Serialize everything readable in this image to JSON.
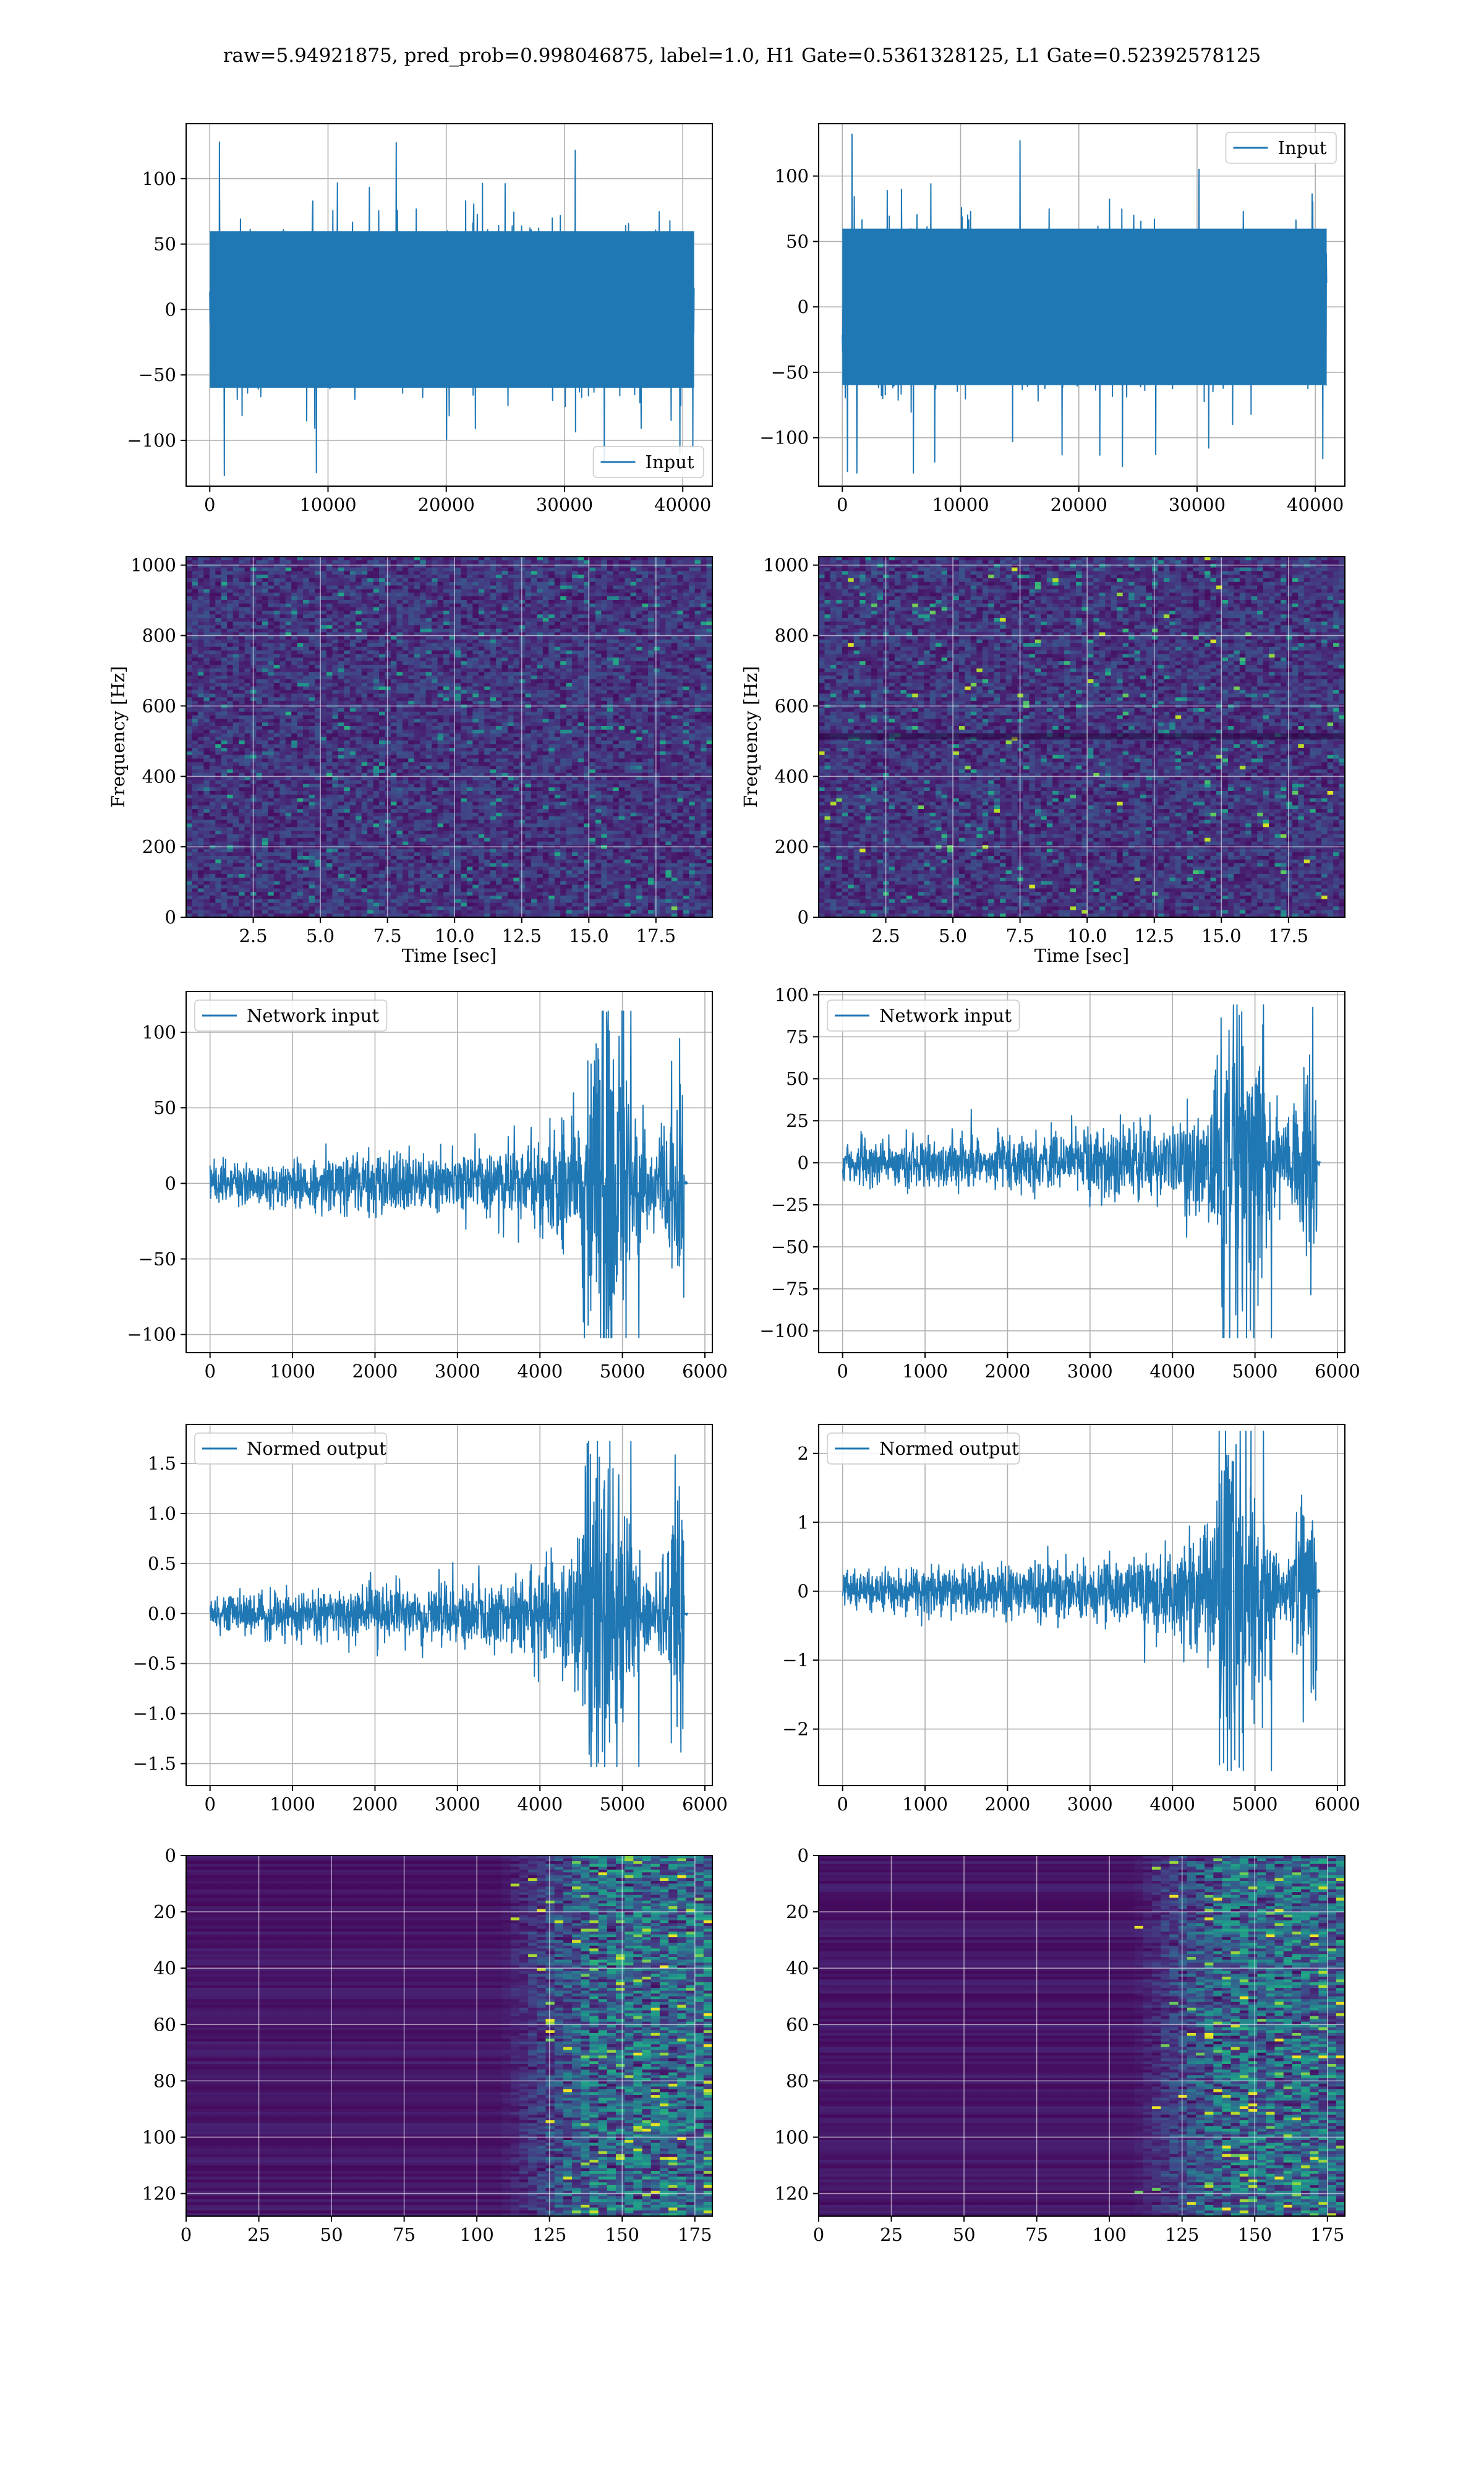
{
  "title": "raw=5.94921875, pred_prob=0.998046875, label=1.0, H1 Gate=0.5361328125, L1 Gate=0.52392578125",
  "colors": {
    "line": "#1f77b4",
    "grid": "#b0b0b0",
    "axes": "#000000",
    "viridis_low": "#440154",
    "viridis_mid": "#21918c",
    "viridis_high": "#fde725"
  },
  "chart_data": [
    {
      "id": "h1-raw-input",
      "type": "line",
      "title": "",
      "xlabel": "",
      "ylabel": "",
      "xlim": [
        -2000,
        42500
      ],
      "ylim": [
        -135,
        142
      ],
      "xticks": [
        0,
        10000,
        20000,
        30000,
        40000
      ],
      "yticks": [
        -100,
        -50,
        0,
        50,
        100
      ],
      "grid": true,
      "legend": "lower-right",
      "series": [
        {
          "name": "Input",
          "n_samples": 40960,
          "envelope_max": 128,
          "envelope_min": -127,
          "typical_band": [
            -65,
            65
          ]
        }
      ]
    },
    {
      "id": "l1-raw-input",
      "type": "line",
      "title": "",
      "xlabel": "",
      "ylabel": "",
      "xlim": [
        -2000,
        42500
      ],
      "ylim": [
        -137,
        140
      ],
      "xticks": [
        0,
        10000,
        20000,
        30000,
        40000
      ],
      "yticks": [
        -100,
        -50,
        0,
        50,
        100
      ],
      "grid": true,
      "legend": "upper-right",
      "series": [
        {
          "name": "Input",
          "n_samples": 40960,
          "envelope_max": 132,
          "envelope_min": -127,
          "typical_band": [
            -65,
            65
          ]
        }
      ]
    },
    {
      "id": "h1-spectrogram",
      "type": "heatmap",
      "title": "",
      "xlabel": "Time [sec]",
      "ylabel": "Frequency [Hz]",
      "xlim": [
        0,
        19.6
      ],
      "ylim": [
        0,
        1024
      ],
      "xticks": [
        2.5,
        5.0,
        7.5,
        10.0,
        12.5,
        15.0,
        17.5
      ],
      "yticks": [
        0,
        200,
        400,
        600,
        800,
        1000
      ],
      "grid": true,
      "colormap": "viridis"
    },
    {
      "id": "l1-spectrogram",
      "type": "heatmap",
      "title": "",
      "xlabel": "Time [sec]",
      "ylabel": "Frequency [Hz]",
      "xlim": [
        0,
        19.6
      ],
      "ylim": [
        0,
        1024
      ],
      "xticks": [
        2.5,
        5.0,
        7.5,
        10.0,
        12.5,
        15.0,
        17.5
      ],
      "yticks": [
        0,
        200,
        400,
        600,
        800,
        1000
      ],
      "grid": true,
      "colormap": "viridis"
    },
    {
      "id": "h1-network-input",
      "type": "line",
      "title": "",
      "xlabel": "",
      "ylabel": "",
      "xlim": [
        -290,
        6090
      ],
      "ylim": [
        -112,
        127
      ],
      "xticks": [
        0,
        1000,
        2000,
        3000,
        4000,
        5000,
        6000
      ],
      "yticks": [
        -100,
        -50,
        0,
        50,
        100
      ],
      "grid": true,
      "legend": "upper-left",
      "series": [
        {
          "name": "Network input",
          "n_samples": 5790,
          "envelope_max": 114,
          "envelope_min": -102,
          "quiet_band": [
            -20,
            20
          ],
          "burst_start": 4500,
          "burst_end": 5750
        }
      ]
    },
    {
      "id": "l1-network-input",
      "type": "line",
      "title": "",
      "xlabel": "",
      "ylabel": "",
      "xlim": [
        -290,
        6090
      ],
      "ylim": [
        -113,
        102
      ],
      "xticks": [
        0,
        1000,
        2000,
        3000,
        4000,
        5000,
        6000
      ],
      "yticks": [
        -100,
        -75,
        -50,
        -25,
        0,
        25,
        50,
        75,
        100
      ],
      "grid": true,
      "legend": "upper-left",
      "series": [
        {
          "name": "Network input",
          "n_samples": 5790,
          "envelope_max": 94,
          "envelope_min": -104,
          "quiet_band": [
            -18,
            18
          ],
          "burst_start": 4500,
          "burst_end": 5750
        }
      ]
    },
    {
      "id": "h1-normed-output",
      "type": "line",
      "title": "",
      "xlabel": "",
      "ylabel": "",
      "xlim": [
        -290,
        6090
      ],
      "ylim": [
        -1.72,
        1.89
      ],
      "xticks": [
        0,
        1000,
        2000,
        3000,
        4000,
        5000,
        6000
      ],
      "yticks": [
        -1.5,
        -1.0,
        -0.5,
        0.0,
        0.5,
        1.0,
        1.5
      ],
      "grid": true,
      "legend": "upper-left",
      "series": [
        {
          "name": "Normed output",
          "n_samples": 5790,
          "envelope_max": 1.72,
          "envelope_min": -1.53,
          "quiet_band": [
            -0.3,
            0.3
          ],
          "burst_start": 4500,
          "burst_end": 5750
        }
      ]
    },
    {
      "id": "l1-normed-output",
      "type": "line",
      "title": "",
      "xlabel": "",
      "ylabel": "",
      "xlim": [
        -290,
        6090
      ],
      "ylim": [
        -2.82,
        2.42
      ],
      "xticks": [
        0,
        1000,
        2000,
        3000,
        4000,
        5000,
        6000
      ],
      "yticks": [
        -2,
        -1,
        0,
        1,
        2
      ],
      "grid": true,
      "legend": "upper-left",
      "series": [
        {
          "name": "Normed output",
          "n_samples": 5790,
          "envelope_max": 2.32,
          "envelope_min": -2.6,
          "quiet_band": [
            -0.45,
            0.45
          ],
          "burst_start": 4500,
          "burst_end": 5750
        }
      ]
    },
    {
      "id": "h1-feature-map",
      "type": "heatmap",
      "title": "",
      "xlabel": "",
      "ylabel": "",
      "xlim": [
        0,
        181
      ],
      "ylim": [
        128,
        0
      ],
      "n_rows": 128,
      "n_cols": 181,
      "xticks": [
        0,
        25,
        50,
        75,
        100,
        125,
        150,
        175
      ],
      "yticks": [
        0,
        20,
        40,
        60,
        80,
        100,
        120
      ],
      "grid": true,
      "colormap": "viridis",
      "activity_onset": 125
    },
    {
      "id": "l1-feature-map",
      "type": "heatmap",
      "title": "",
      "xlabel": "",
      "ylabel": "",
      "xlim": [
        0,
        181
      ],
      "ylim": [
        128,
        0
      ],
      "n_rows": 128,
      "n_cols": 181,
      "xticks": [
        0,
        25,
        50,
        75,
        100,
        125,
        150,
        175
      ],
      "yticks": [
        0,
        20,
        40,
        60,
        80,
        100,
        120
      ],
      "grid": true,
      "colormap": "viridis",
      "activity_onset": 125
    }
  ]
}
